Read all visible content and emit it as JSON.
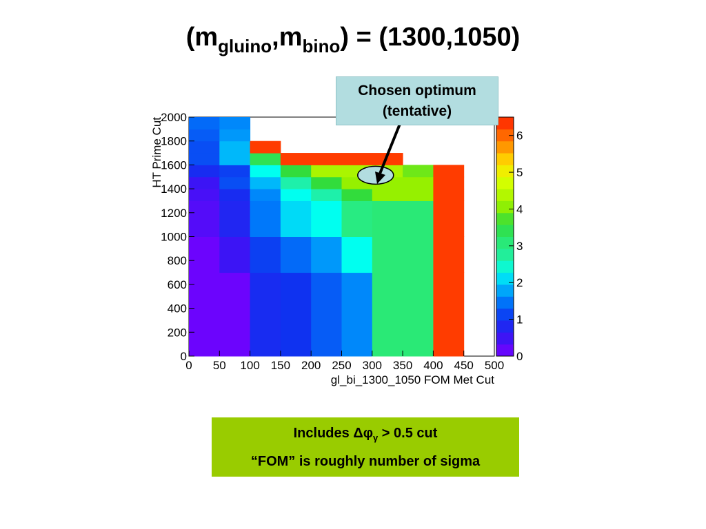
{
  "slide": {
    "title_prefix": "(m",
    "title_sub1": "gluino",
    "title_comma": ",m",
    "title_sub2": "bino",
    "title_suffix": ") = (1300,1050)",
    "callout_line1": "Chosen optimum",
    "callout_line2": "(tentative)",
    "info_line1_pre": "Includes ",
    "info_line1_sym": "Δφ",
    "info_line1_sub": "γ",
    "info_line1_post": " > 0.5 cut",
    "info_line2": "“FOM” is roughly number of sigma"
  },
  "colors": {
    "callout_bg": "#b2dde0",
    "info_bg": "#99cc00"
  },
  "chart_data": {
    "type": "heatmap",
    "xlabel": "gl_bi_1300_1050 FOM Met Cut",
    "ylabel": "HT Prime Cut",
    "x_ticks": [
      0,
      50,
      100,
      150,
      200,
      250,
      300,
      350,
      400,
      450,
      500
    ],
    "y_ticks": [
      0,
      200,
      400,
      600,
      800,
      1000,
      1200,
      1400,
      1600,
      1800,
      2000
    ],
    "colorbar_ticks": [
      0,
      1,
      2,
      3,
      4,
      5,
      6
    ],
    "xlim": [
      0,
      500
    ],
    "ylim": [
      0,
      2000
    ],
    "zlim": [
      0,
      6.5
    ],
    "x_bins": [
      0,
      50,
      100,
      150,
      200,
      250,
      300,
      350,
      400,
      450,
      500
    ],
    "y_bins": [
      0,
      700,
      1000,
      1300,
      1400,
      1500,
      1600,
      1700,
      1800,
      1900,
      2000
    ],
    "z": [
      [
        0.1,
        0.1,
        0.9,
        1.0,
        1.3,
        1.6,
        3.1,
        3.1,
        6.3,
        null
      ],
      [
        0.1,
        0.5,
        1.1,
        1.4,
        1.7,
        2.3,
        3.1,
        3.1,
        6.3,
        null
      ],
      [
        0.3,
        0.8,
        1.5,
        2.1,
        2.3,
        3.0,
        3.1,
        3.1,
        6.3,
        null
      ],
      [
        0.4,
        0.9,
        1.6,
        2.3,
        2.6,
        3.6,
        4.1,
        4.1,
        6.3,
        null
      ],
      [
        0.5,
        1.2,
        1.9,
        2.6,
        3.6,
        4.1,
        4.1,
        4.1,
        6.3,
        null
      ],
      [
        0.9,
        1.1,
        2.3,
        3.6,
        4.3,
        4.3,
        4.3,
        3.9,
        6.3,
        null
      ],
      [
        1.2,
        1.9,
        3.4,
        6.3,
        6.3,
        6.3,
        6.3,
        null,
        null,
        null
      ],
      [
        1.2,
        1.9,
        6.3,
        null,
        null,
        null,
        null,
        null,
        null,
        null
      ],
      [
        1.3,
        1.7,
        null,
        null,
        null,
        null,
        null,
        null,
        null,
        null
      ],
      [
        1.4,
        1.6,
        null,
        null,
        null,
        null,
        null,
        null,
        null,
        null
      ]
    ],
    "annotation": "Chosen optimum (tentative)",
    "optimum": {
      "x": 300,
      "y": 1525
    }
  }
}
